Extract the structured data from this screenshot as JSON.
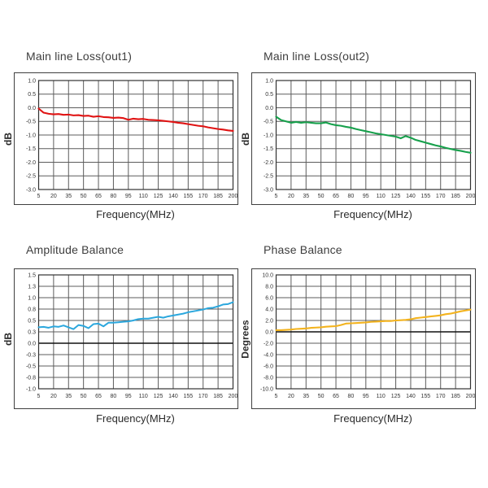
{
  "style": {
    "grid_color": "#5c5c5c",
    "plot_border_color": "#333333",
    "outer_border_color": "#3f3f3f",
    "zero_line_color": "#111111",
    "tick_text_color": "#333333",
    "title_color": "#3d3d3d",
    "background": "#ffffff"
  },
  "chart_data": [
    {
      "type": "line",
      "title": "Main line Loss(out1)",
      "xlabel": "Frequency(MHz)",
      "ylabel": "dB",
      "layout": "top",
      "color": "#e01313",
      "line_width": 2.1,
      "xlim": [
        5,
        200
      ],
      "ylim": [
        -3.0,
        1.0
      ],
      "zero_line_dark": false,
      "x_ticks": [
        5,
        20,
        35,
        50,
        65,
        80,
        95,
        110,
        125,
        140,
        155,
        170,
        185,
        200
      ],
      "y_tick_labels": [
        "1.0",
        "0.5",
        "0.0",
        "-0.5",
        "-1.0",
        "-1.5",
        "-2.0",
        "-2.5",
        "-3.0"
      ],
      "y_tick_values": [
        1.0,
        0.5,
        0.0,
        -0.5,
        -1.0,
        -1.5,
        -2.0,
        -2.5,
        -3.0
      ],
      "x": [
        5,
        10,
        15,
        20,
        25,
        30,
        35,
        40,
        45,
        50,
        55,
        60,
        65,
        70,
        75,
        80,
        85,
        90,
        95,
        100,
        105,
        110,
        115,
        120,
        125,
        130,
        135,
        140,
        145,
        150,
        155,
        160,
        165,
        170,
        175,
        180,
        185,
        190,
        195,
        200
      ],
      "y": [
        -0.03,
        -0.18,
        -0.22,
        -0.24,
        -0.23,
        -0.26,
        -0.25,
        -0.28,
        -0.27,
        -0.3,
        -0.29,
        -0.33,
        -0.31,
        -0.34,
        -0.35,
        -0.37,
        -0.36,
        -0.38,
        -0.44,
        -0.4,
        -0.42,
        -0.41,
        -0.44,
        -0.45,
        -0.46,
        -0.48,
        -0.5,
        -0.52,
        -0.55,
        -0.57,
        -0.6,
        -0.63,
        -0.66,
        -0.68,
        -0.72,
        -0.75,
        -0.78,
        -0.8,
        -0.83,
        -0.85
      ]
    },
    {
      "type": "line",
      "title": "Main line Loss(out2)",
      "xlabel": "Frequency(MHz)",
      "ylabel": "dB",
      "layout": "top",
      "color": "#17a04c",
      "line_width": 2.1,
      "xlim": [
        5,
        200
      ],
      "ylim": [
        -3.0,
        1.0
      ],
      "zero_line_dark": false,
      "x_ticks": [
        5,
        20,
        35,
        50,
        65,
        80,
        95,
        110,
        125,
        140,
        155,
        170,
        185,
        200
      ],
      "y_tick_labels": [
        "1.0",
        "0.5",
        "0.0",
        "-0.5",
        "-1.0",
        "-1.5",
        "-2.0",
        "-2.5",
        "-3.0"
      ],
      "y_tick_values": [
        1.0,
        0.5,
        0.0,
        -0.5,
        -1.0,
        -1.5,
        -2.0,
        -2.5,
        -3.0
      ],
      "x": [
        5,
        10,
        15,
        20,
        25,
        30,
        35,
        40,
        45,
        50,
        55,
        60,
        65,
        70,
        75,
        80,
        85,
        90,
        95,
        100,
        105,
        110,
        115,
        120,
        125,
        130,
        135,
        140,
        145,
        150,
        155,
        160,
        165,
        170,
        175,
        180,
        185,
        190,
        195,
        200
      ],
      "y": [
        -0.33,
        -0.45,
        -0.5,
        -0.55,
        -0.52,
        -0.55,
        -0.53,
        -0.55,
        -0.57,
        -0.57,
        -0.54,
        -0.6,
        -0.64,
        -0.66,
        -0.7,
        -0.73,
        -0.78,
        -0.82,
        -0.86,
        -0.9,
        -0.94,
        -0.97,
        -1.0,
        -1.03,
        -1.06,
        -1.12,
        -1.04,
        -1.1,
        -1.18,
        -1.23,
        -1.28,
        -1.33,
        -1.38,
        -1.42,
        -1.47,
        -1.51,
        -1.55,
        -1.58,
        -1.62,
        -1.65
      ]
    },
    {
      "type": "line",
      "title": "Amplitude Balance",
      "xlabel": "Frequency(MHz)",
      "ylabel": "dB",
      "layout": "bottom",
      "color": "#2ba7dd",
      "line_width": 2.0,
      "xlim": [
        5,
        200
      ],
      "ylim": [
        -1.0,
        1.5
      ],
      "zero_line_dark": true,
      "x_ticks": [
        5,
        20,
        35,
        50,
        65,
        80,
        95,
        110,
        125,
        140,
        155,
        170,
        185,
        200
      ],
      "y_tick_labels": [
        "1.5",
        "1.3",
        "1.0",
        "0.8",
        "0.5",
        "0.3",
        "0.0",
        "-0.3",
        "-0.5",
        "-0.8",
        "-1.0"
      ],
      "y_tick_values": [
        1.5,
        1.25,
        1.0,
        0.75,
        0.5,
        0.25,
        0.0,
        -0.25,
        -0.5,
        -0.75,
        -1.0
      ],
      "x": [
        5,
        10,
        15,
        20,
        25,
        30,
        35,
        40,
        45,
        50,
        55,
        60,
        65,
        70,
        75,
        80,
        85,
        90,
        95,
        100,
        105,
        110,
        115,
        120,
        125,
        130,
        135,
        140,
        145,
        150,
        155,
        160,
        165,
        170,
        175,
        180,
        185,
        190,
        195,
        200
      ],
      "y": [
        0.35,
        0.36,
        0.34,
        0.37,
        0.36,
        0.39,
        0.35,
        0.31,
        0.4,
        0.38,
        0.33,
        0.42,
        0.43,
        0.37,
        0.45,
        0.45,
        0.46,
        0.47,
        0.48,
        0.5,
        0.53,
        0.54,
        0.54,
        0.56,
        0.58,
        0.56,
        0.59,
        0.61,
        0.63,
        0.65,
        0.68,
        0.7,
        0.72,
        0.74,
        0.77,
        0.78,
        0.81,
        0.85,
        0.86,
        0.9
      ]
    },
    {
      "type": "line",
      "title": "Phase Balance",
      "xlabel": "Frequency(MHz)",
      "ylabel": "Degrees",
      "layout": "bottom",
      "color": "#f3b31e",
      "line_width": 2.1,
      "xlim": [
        5,
        200
      ],
      "ylim": [
        -10.0,
        10.0
      ],
      "zero_line_dark": true,
      "x_ticks": [
        5,
        20,
        35,
        50,
        65,
        80,
        95,
        110,
        125,
        140,
        155,
        170,
        185,
        200
      ],
      "y_tick_labels": [
        "10.0",
        "8.0",
        "6.0",
        "4.0",
        "2.0",
        "0.0",
        "-2.0",
        "-4.0",
        "-6.0",
        "-8.0",
        "-10.0"
      ],
      "y_tick_values": [
        10.0,
        8.0,
        6.0,
        4.0,
        2.0,
        0.0,
        -2.0,
        -4.0,
        -6.0,
        -8.0,
        -10.0
      ],
      "x": [
        5,
        10,
        15,
        20,
        25,
        30,
        35,
        40,
        45,
        50,
        55,
        60,
        65,
        70,
        75,
        80,
        85,
        90,
        95,
        100,
        105,
        110,
        115,
        120,
        125,
        130,
        135,
        140,
        145,
        150,
        155,
        160,
        165,
        170,
        175,
        180,
        185,
        190,
        195,
        200
      ],
      "y": [
        0.3,
        0.3,
        0.35,
        0.4,
        0.5,
        0.55,
        0.6,
        0.7,
        0.75,
        0.8,
        0.9,
        0.95,
        1.0,
        1.2,
        1.45,
        1.5,
        1.55,
        1.6,
        1.65,
        1.75,
        1.8,
        1.85,
        1.9,
        1.9,
        2.0,
        2.05,
        2.1,
        2.2,
        2.4,
        2.5,
        2.6,
        2.7,
        2.8,
        2.9,
        3.1,
        3.2,
        3.4,
        3.6,
        3.75,
        3.9
      ]
    }
  ]
}
